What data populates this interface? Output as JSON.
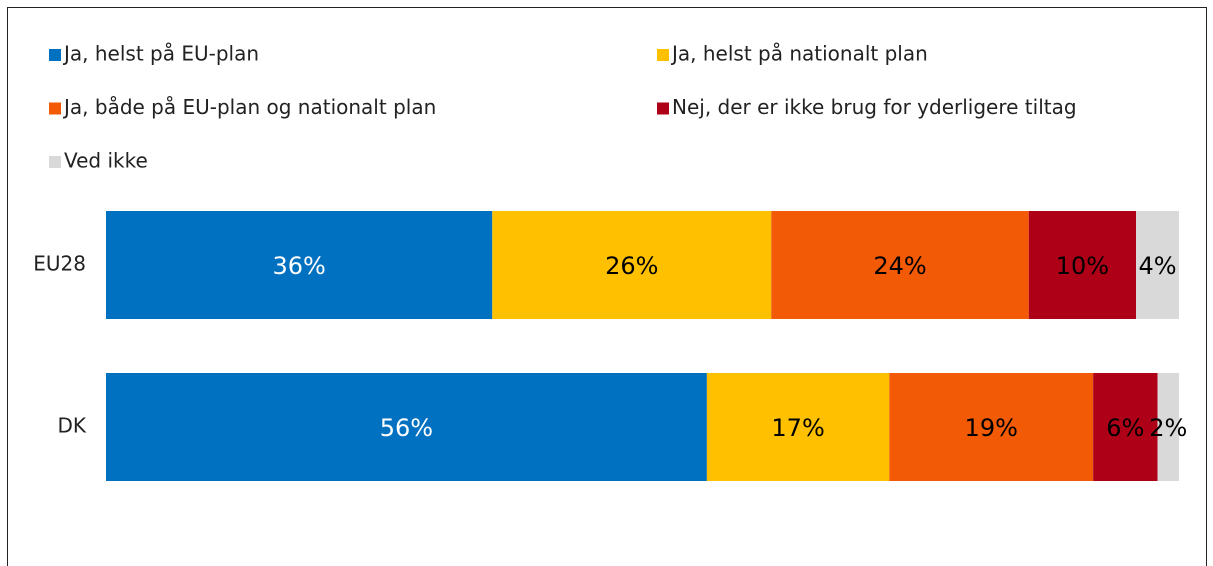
{
  "chart_data": {
    "type": "stacked-bar-horizontal",
    "categories": [
      "EU28",
      "DK"
    ],
    "series": [
      {
        "name": "Ja, helst på EU-plan",
        "color": "#0070C0",
        "label_color": "#ffffff",
        "values": [
          36,
          56
        ],
        "value_labels": [
          "36%",
          "56%"
        ]
      },
      {
        "name": "Ja, helst på nationalt plan",
        "color": "#FFC000",
        "label_color": "#000000",
        "values": [
          26,
          17
        ],
        "value_labels": [
          "26%",
          "17%"
        ]
      },
      {
        "name": "Ja, både på EU-plan og nationalt plan",
        "color": "#F25A05",
        "label_color": "#000000",
        "values": [
          24,
          19
        ],
        "value_labels": [
          "24%",
          "19%"
        ]
      },
      {
        "name": "Nej, der er ikke brug for yderligere tiltag",
        "color": "#AE0016",
        "label_color": "#000000",
        "values": [
          10,
          6
        ],
        "value_labels": [
          "10%",
          "6%"
        ]
      },
      {
        "name": "Ved ikke",
        "color": "#D9D9D9",
        "label_color": "#000000",
        "values": [
          4,
          2
        ],
        "value_labels": [
          "4%",
          "2%"
        ]
      }
    ],
    "legend": "top"
  }
}
